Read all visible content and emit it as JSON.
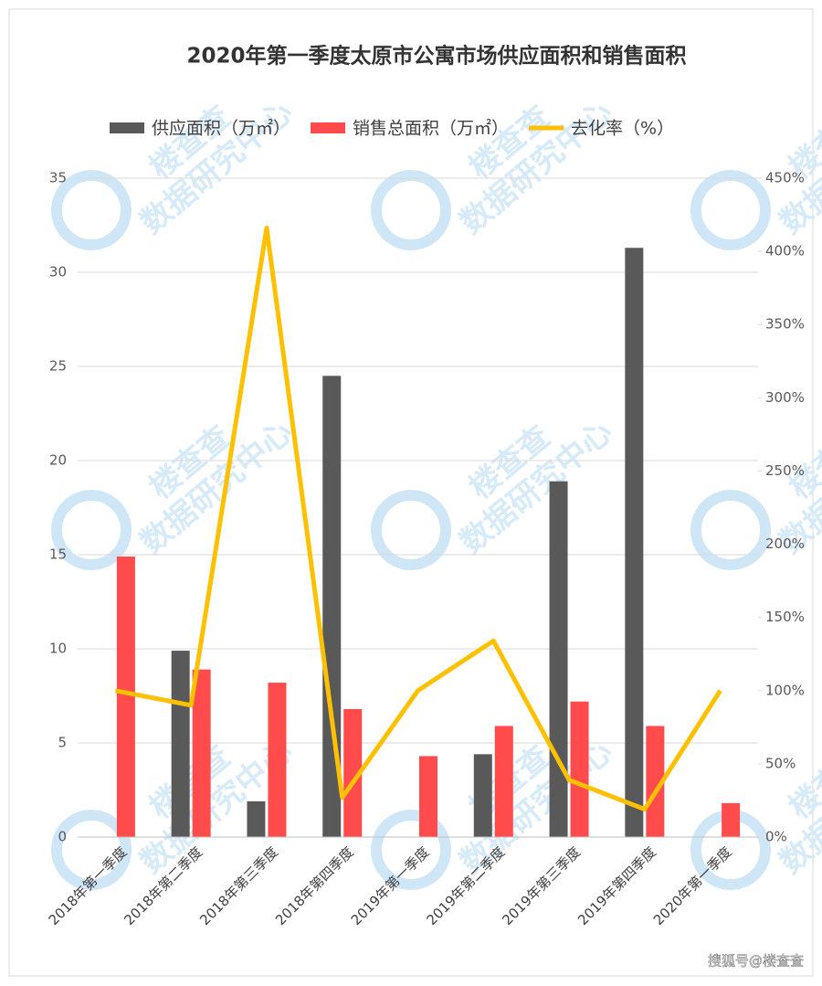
{
  "chart_data": {
    "type": "bar-line",
    "title": "2020年第一季度太原市公寓市场供应面积和销售面积",
    "categories": [
      "2018年第一季度",
      "2018年第二季度",
      "2018年第三季度",
      "2018年第四季度",
      "2019年第一季度",
      "2019年第二季度",
      "2019年第三季度",
      "2019年第四季度",
      "2020年第一季度"
    ],
    "series": [
      {
        "name": "供应面积（万㎡）",
        "color": "#595959",
        "kind": "bar",
        "values": [
          0,
          9.9,
          1.9,
          24.5,
          0,
          4.4,
          18.9,
          31.3,
          0
        ]
      },
      {
        "name": "销售总面积（万㎡）",
        "color": "#ff4b4b",
        "kind": "bar",
        "values": [
          14.9,
          8.9,
          8.2,
          6.8,
          4.3,
          5.9,
          7.2,
          5.9,
          1.8
        ]
      },
      {
        "name": "去化率（%）",
        "color": "#ffc000",
        "kind": "line",
        "axis": "y2",
        "values": [
          100,
          90,
          416,
          27,
          100,
          134,
          39,
          19,
          100
        ]
      }
    ],
    "ylim": [
      0,
      35
    ],
    "yticks": [
      0,
      5,
      10,
      15,
      20,
      25,
      30,
      35
    ],
    "y2lim": [
      0,
      450
    ],
    "y2ticks": [
      {
        "value": 0,
        "label": "0%"
      },
      {
        "value": 50,
        "label": "50%"
      },
      {
        "value": 100,
        "label": "100%"
      },
      {
        "value": 150,
        "label": "150%"
      },
      {
        "value": 200,
        "label": "200%"
      },
      {
        "value": 250,
        "label": "250%"
      },
      {
        "value": 300,
        "label": "300%"
      },
      {
        "value": 350,
        "label": "350%"
      },
      {
        "value": 400,
        "label": "400%"
      },
      {
        "value": 450,
        "label": "450%"
      }
    ],
    "grid": true,
    "legend": "top",
    "watermark": [
      "楼查查",
      "数据研究中心"
    ],
    "source": "搜狐号@楼查查"
  }
}
